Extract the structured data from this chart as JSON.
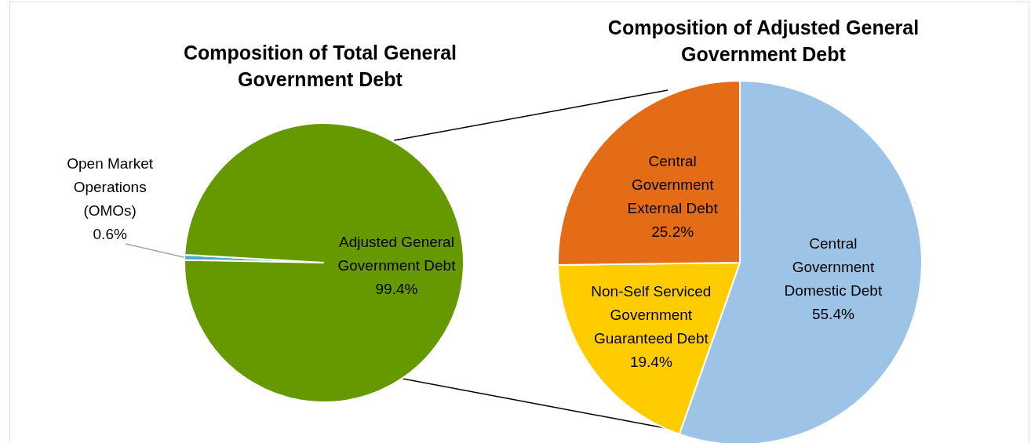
{
  "chart_data": [
    {
      "type": "pie",
      "title": "Composition of Total General Government Debt",
      "categories": [
        "Open Market Operations (OMOs)",
        "Adjusted General Government Debt"
      ],
      "values": [
        0.6,
        99.4
      ],
      "value_labels": [
        "0.6%",
        "99.4%"
      ],
      "colors": [
        "#4bacc6",
        "#669900"
      ]
    },
    {
      "type": "pie",
      "title": "Composition of Adjusted General Government Debt",
      "categories": [
        "Central Government Domestic Debt",
        "Non-Self Serviced Government Guaranteed Debt",
        "Central Government External Debt"
      ],
      "values": [
        55.4,
        19.4,
        25.2
      ],
      "value_labels": [
        "55.4%",
        "19.4%",
        "25.2%"
      ],
      "colors": [
        "#9dc3e6",
        "#ffcc00",
        "#e46c17"
      ]
    }
  ]
}
